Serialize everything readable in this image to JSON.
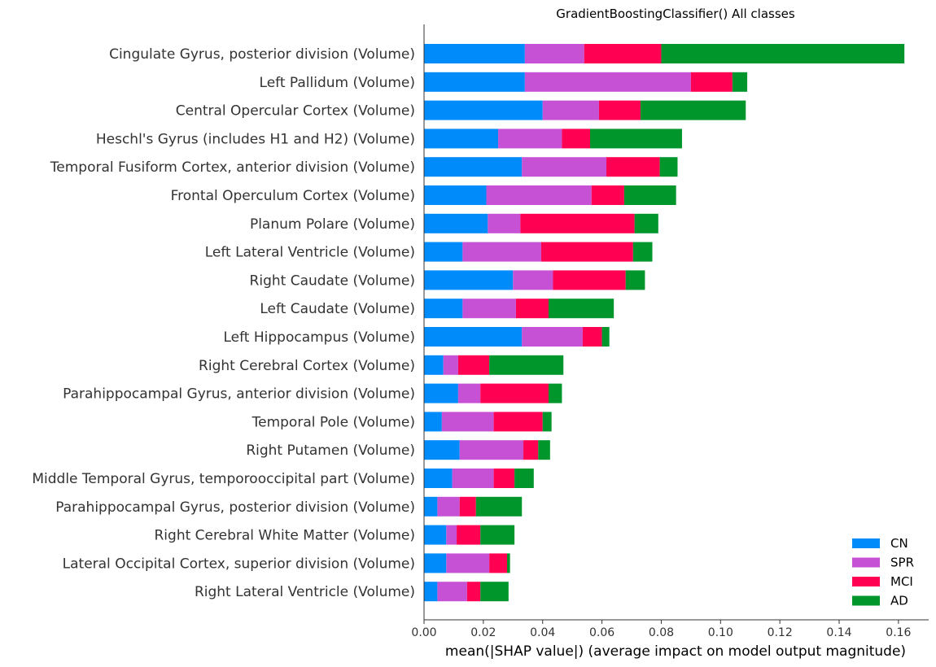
{
  "chart_data": {
    "type": "bar",
    "orientation": "horizontal",
    "stacked": true,
    "title": "GradientBoostingClassifier() All classes",
    "xlabel": "mean(|SHAP value|) (average impact on model output magnitude)",
    "ylabel": "",
    "xlim": [
      0,
      0.17
    ],
    "xticks": [
      "0.00",
      "0.02",
      "0.04",
      "0.06",
      "0.08",
      "0.10",
      "0.12",
      "0.14",
      "0.16"
    ],
    "xtick_values": [
      0,
      0.02,
      0.04,
      0.06,
      0.08,
      0.1,
      0.12,
      0.14,
      0.16
    ],
    "grid": false,
    "legend_position": "bottom-right",
    "categories": [
      "Cingulate Gyrus, posterior division (Volume)",
      "Left Pallidum (Volume)",
      "Central Opercular Cortex (Volume)",
      "Heschl's Gyrus (includes H1 and H2) (Volume)",
      "Temporal Fusiform Cortex, anterior division (Volume)",
      "Frontal Operculum Cortex (Volume)",
      "Planum Polare (Volume)",
      "Left Lateral Ventricle (Volume)",
      "Right Caudate (Volume)",
      "Left Caudate (Volume)",
      "Left Hippocampus (Volume)",
      "Right Cerebral Cortex (Volume)",
      "Parahippocampal Gyrus, anterior division (Volume)",
      "Temporal Pole (Volume)",
      "Right Putamen (Volume)",
      "Middle Temporal Gyrus, temporooccipital part (Volume)",
      "Parahippocampal Gyrus, posterior division (Volume)",
      "Right Cerebral White Matter (Volume)",
      "Lateral Occipital Cortex, superior division (Volume)",
      "Right Lateral Ventricle (Volume)"
    ],
    "series": [
      {
        "name": "CN",
        "color": "#008bfb",
        "values": [
          0.034,
          0.034,
          0.04,
          0.025,
          0.033,
          0.021,
          0.0215,
          0.013,
          0.03,
          0.013,
          0.033,
          0.0065,
          0.0115,
          0.006,
          0.012,
          0.0095,
          0.0045,
          0.0075,
          0.0075,
          0.0045
        ]
      },
      {
        "name": "SPR",
        "color": "#c751d5",
        "values": [
          0.02,
          0.056,
          0.019,
          0.0215,
          0.0285,
          0.0355,
          0.011,
          0.0265,
          0.0135,
          0.018,
          0.0205,
          0.005,
          0.0075,
          0.0175,
          0.0215,
          0.014,
          0.0075,
          0.0035,
          0.0145,
          0.01
        ]
      },
      {
        "name": "MCI",
        "color": "#ff0052",
        "values": [
          0.026,
          0.014,
          0.014,
          0.0095,
          0.018,
          0.011,
          0.0385,
          0.031,
          0.0245,
          0.011,
          0.0065,
          0.0105,
          0.023,
          0.0165,
          0.005,
          0.007,
          0.0055,
          0.008,
          0.006,
          0.0045
        ]
      },
      {
        "name": "AD",
        "color": "#00962b",
        "values": [
          0.082,
          0.005,
          0.0355,
          0.031,
          0.006,
          0.0175,
          0.008,
          0.0065,
          0.0065,
          0.022,
          0.0025,
          0.025,
          0.0045,
          0.003,
          0.004,
          0.0065,
          0.0155,
          0.0115,
          0.001,
          0.0095
        ]
      }
    ]
  }
}
